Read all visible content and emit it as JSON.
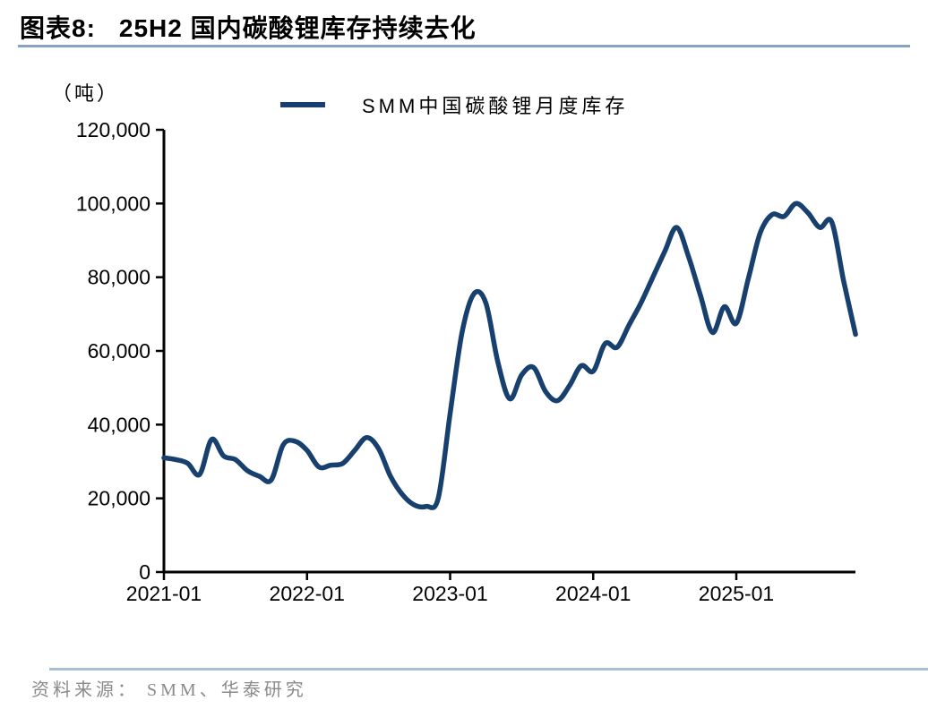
{
  "header": {
    "figure_label": "图表8:",
    "title": "25H2 国内碳酸锂库存持续去化"
  },
  "footer": {
    "source": "资料来源： SMM、华泰研究"
  },
  "chart_data": {
    "type": "line",
    "title": "",
    "unit_label": "（吨）",
    "legend": [
      "SMM中国碳酸锂月度库存"
    ],
    "legend_position": "top-center",
    "line_color": "#17406f",
    "axis_color": "#000000",
    "smooth": true,
    "grid": false,
    "ylim": [
      0,
      120000
    ],
    "yticks": [
      0,
      20000,
      40000,
      60000,
      80000,
      100000,
      120000
    ],
    "ytick_labels": [
      "0",
      "20,000",
      "40,000",
      "60,000",
      "80,000",
      "100,000",
      "120,000"
    ],
    "xtick_labels": [
      "2021-01",
      "2022-01",
      "2023-01",
      "2024-01",
      "2025-01"
    ],
    "xtick_month_index": [
      0,
      12,
      24,
      36,
      48
    ],
    "x": [
      "2021-01",
      "2021-02",
      "2021-03",
      "2021-04",
      "2021-05",
      "2021-06",
      "2021-07",
      "2021-08",
      "2021-09",
      "2021-10",
      "2021-11",
      "2021-12",
      "2022-01",
      "2022-02",
      "2022-03",
      "2022-04",
      "2022-05",
      "2022-06",
      "2022-07",
      "2022-08",
      "2022-09",
      "2022-10",
      "2022-11",
      "2022-12",
      "2023-01",
      "2023-02",
      "2023-03",
      "2023-04",
      "2023-05",
      "2023-06",
      "2023-07",
      "2023-08",
      "2023-09",
      "2023-10",
      "2023-11",
      "2023-12",
      "2024-01",
      "2024-02",
      "2024-03",
      "2024-04",
      "2024-05",
      "2024-06",
      "2024-07",
      "2024-08",
      "2024-09",
      "2024-10",
      "2024-11",
      "2024-12",
      "2025-01",
      "2025-02",
      "2025-03",
      "2025-04",
      "2025-05",
      "2025-06",
      "2025-07",
      "2025-08",
      "2025-09",
      "2025-10",
      "2025-11"
    ],
    "series": [
      {
        "name": "SMM中国碳酸锂月度库存",
        "values": [
          31000,
          30500,
          29500,
          26500,
          36000,
          31500,
          30500,
          27500,
          26000,
          25000,
          34500,
          35500,
          33000,
          28500,
          29000,
          29500,
          33000,
          36500,
          33500,
          26000,
          21000,
          18200,
          17800,
          20000,
          43000,
          65000,
          75500,
          73000,
          57000,
          47000,
          53500,
          55500,
          49000,
          46500,
          50500,
          56000,
          54500,
          62000,
          61000,
          67000,
          73000,
          80000,
          87000,
          93500,
          85500,
          75000,
          65000,
          72000,
          67500,
          79500,
          92000,
          97000,
          96500,
          100000,
          97500,
          93500,
          95000,
          79000,
          64500
        ]
      }
    ]
  }
}
